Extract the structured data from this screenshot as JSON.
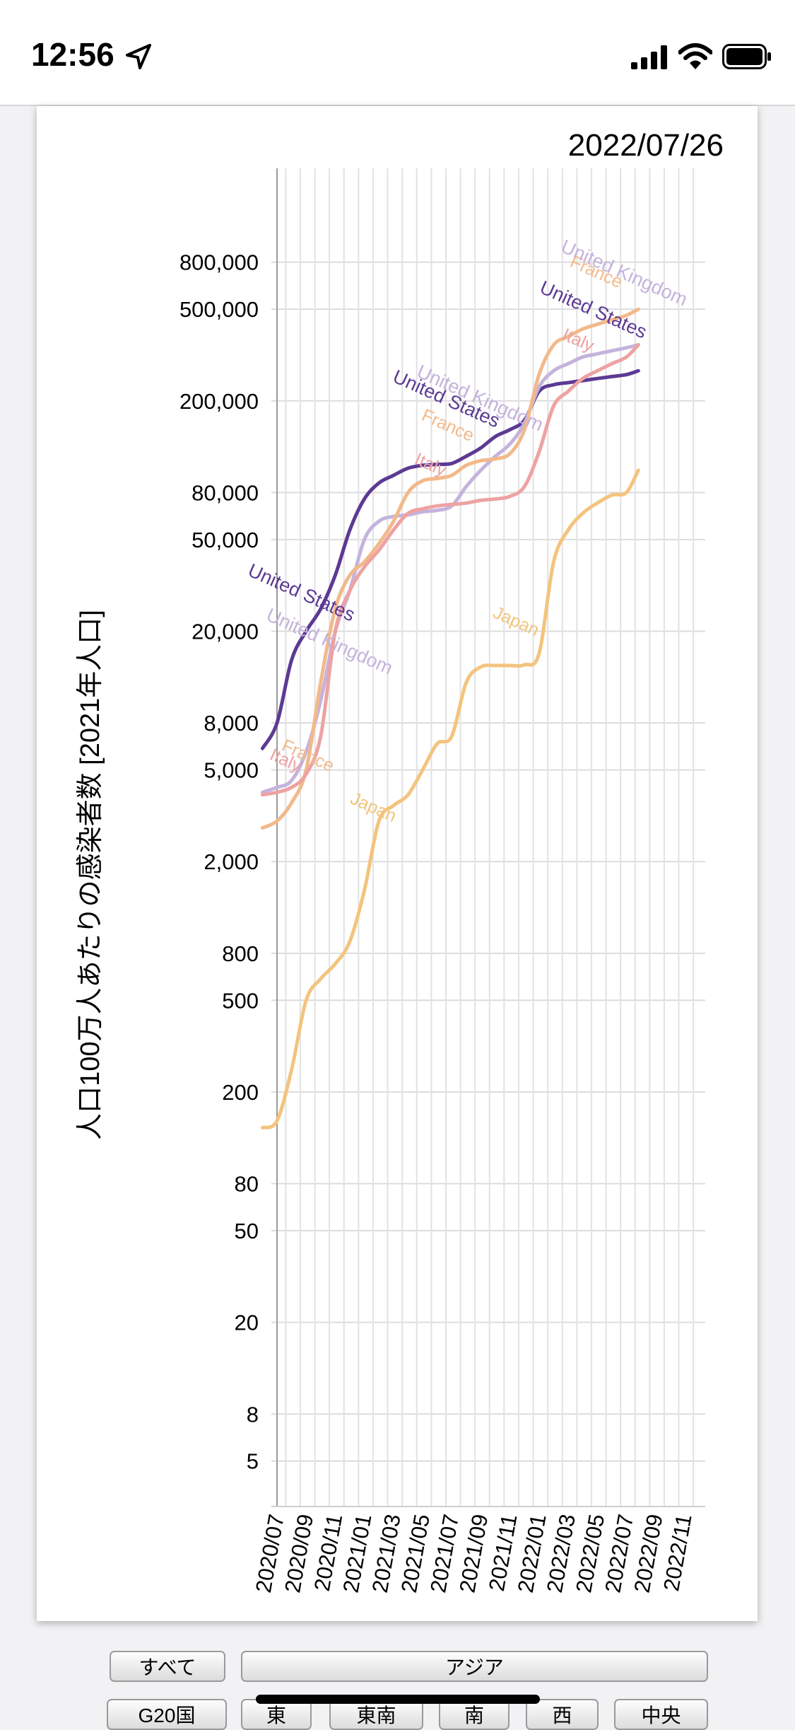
{
  "status_bar": {
    "time": "12:56"
  },
  "chart_date": "2022/07/26",
  "chart_data": {
    "type": "line",
    "title": "",
    "ylabel": "人口100万人あたりの感染者数 [2021年人口]",
    "xlabel": "",
    "y_scale": "log",
    "ylim": [
      3,
      1300000
    ],
    "y_ticks": [
      {
        "value": 800000,
        "label": "800,000"
      },
      {
        "value": 500000,
        "label": "500,000"
      },
      {
        "value": 200000,
        "label": "200,000"
      },
      {
        "value": 80000,
        "label": "80,000"
      },
      {
        "value": 50000,
        "label": "50,000"
      },
      {
        "value": 20000,
        "label": "20,000"
      },
      {
        "value": 8000,
        "label": "8,000"
      },
      {
        "value": 5000,
        "label": "5,000"
      },
      {
        "value": 2000,
        "label": "2,000"
      },
      {
        "value": 800,
        "label": "800"
      },
      {
        "value": 500,
        "label": "500"
      },
      {
        "value": 200,
        "label": "200"
      },
      {
        "value": 80,
        "label": "80"
      },
      {
        "value": 50,
        "label": "50"
      },
      {
        "value": 20,
        "label": "20"
      },
      {
        "value": 8,
        "label": "8"
      },
      {
        "value": 5,
        "label": "5"
      }
    ],
    "x_ticks": [
      "2020/07",
      "2020/09",
      "2020/11",
      "2021/01",
      "2021/03",
      "2021/05",
      "2021/07",
      "2021/09",
      "2021/11",
      "2022/01",
      "2022/03",
      "2022/05",
      "2022/07",
      "2022/09",
      "2022/11"
    ],
    "x_range_months": [
      "2020/07",
      "2022/12"
    ],
    "current_date_marker": "2020/07",
    "grid": true,
    "series": [
      {
        "name": "Japan",
        "color": "#f3c47e",
        "x": [
          "2020/06",
          "2020/07",
          "2020/08",
          "2020/09",
          "2020/10",
          "2020/11",
          "2020/12",
          "2021/01",
          "2021/02",
          "2021/03",
          "2021/04",
          "2021/05",
          "2021/06",
          "2021/07",
          "2021/08",
          "2021/09",
          "2021/10",
          "2021/11",
          "2021/12",
          "2022/01",
          "2022/02",
          "2022/03",
          "2022/04",
          "2022/05",
          "2022/06",
          "2022/07",
          "2022/07/26"
        ],
        "values": [
          140,
          150,
          250,
          500,
          620,
          720,
          900,
          1500,
          3000,
          3500,
          3900,
          5000,
          6500,
          7000,
          12000,
          14000,
          14200,
          14200,
          14300,
          16000,
          40000,
          55000,
          65000,
          72000,
          78000,
          80000,
          100000
        ]
      },
      {
        "name": "United States",
        "color": "#5c3a93",
        "x": [
          "2020/06",
          "2020/07",
          "2020/08",
          "2020/09",
          "2020/10",
          "2020/11",
          "2020/12",
          "2021/01",
          "2021/02",
          "2021/03",
          "2021/04",
          "2021/05",
          "2021/06",
          "2021/07",
          "2021/08",
          "2021/09",
          "2021/10",
          "2021/11",
          "2021/12",
          "2022/01",
          "2022/02",
          "2022/03",
          "2022/04",
          "2022/05",
          "2022/06",
          "2022/07",
          "2022/07/26"
        ],
        "values": [
          6200,
          8000,
          15000,
          20000,
          25000,
          35000,
          55000,
          75000,
          88000,
          95000,
          102000,
          105000,
          106000,
          107000,
          115000,
          125000,
          140000,
          150000,
          165000,
          220000,
          235000,
          240000,
          245000,
          250000,
          255000,
          260000,
          270000
        ]
      },
      {
        "name": "United Kingdom",
        "color": "#c4b3dc",
        "x": [
          "2020/06",
          "2020/07",
          "2020/08",
          "2020/09",
          "2020/10",
          "2020/11",
          "2020/12",
          "2021/01",
          "2021/02",
          "2021/03",
          "2021/04",
          "2021/05",
          "2021/06",
          "2021/07",
          "2021/08",
          "2021/09",
          "2021/10",
          "2021/11",
          "2021/12",
          "2022/01",
          "2022/02",
          "2022/03",
          "2022/04",
          "2022/05",
          "2022/06",
          "2022/07",
          "2022/07/26"
        ],
        "values": [
          4000,
          4200,
          4500,
          6000,
          10000,
          20000,
          30000,
          50000,
          60000,
          63000,
          64000,
          66000,
          67000,
          70000,
          85000,
          100000,
          115000,
          130000,
          160000,
          230000,
          270000,
          290000,
          310000,
          320000,
          330000,
          340000,
          350000
        ]
      },
      {
        "name": "France",
        "color": "#f2b98a",
        "x": [
          "2020/06",
          "2020/07",
          "2020/08",
          "2020/09",
          "2020/10",
          "2020/11",
          "2020/12",
          "2021/01",
          "2021/02",
          "2021/03",
          "2021/04",
          "2021/05",
          "2021/06",
          "2021/07",
          "2021/08",
          "2021/09",
          "2021/10",
          "2021/11",
          "2021/12",
          "2022/01",
          "2022/02",
          "2022/03",
          "2022/04",
          "2022/05",
          "2022/06",
          "2022/07",
          "2022/07/26"
        ],
        "values": [
          2800,
          3000,
          3600,
          5000,
          12000,
          25000,
          35000,
          40000,
          48000,
          60000,
          80000,
          90000,
          92000,
          95000,
          105000,
          110000,
          112000,
          118000,
          150000,
          260000,
          350000,
          380000,
          410000,
          430000,
          450000,
          470000,
          500000
        ]
      },
      {
        "name": "Italy",
        "color": "#eea2a2",
        "x": [
          "2020/06",
          "2020/07",
          "2020/08",
          "2020/09",
          "2020/10",
          "2020/11",
          "2020/12",
          "2021/01",
          "2021/02",
          "2021/03",
          "2021/04",
          "2021/05",
          "2021/06",
          "2021/07",
          "2021/08",
          "2021/09",
          "2021/10",
          "2021/11",
          "2021/12",
          "2022/01",
          "2022/02",
          "2022/03",
          "2022/04",
          "2022/05",
          "2022/06",
          "2022/07",
          "2022/07/26"
        ],
        "values": [
          3900,
          4000,
          4200,
          4800,
          7000,
          20000,
          30000,
          38000,
          45000,
          55000,
          65000,
          68000,
          70000,
          71000,
          72000,
          74000,
          75000,
          77000,
          85000,
          120000,
          190000,
          220000,
          250000,
          270000,
          290000,
          310000,
          350000
        ]
      }
    ],
    "annotations": [
      {
        "text": "United States",
        "color": "#5c3a93"
      },
      {
        "text": "United Kingdom",
        "color": "#c4b3dc"
      },
      {
        "text": "France",
        "color": "#f2b98a"
      },
      {
        "text": "Italy",
        "color": "#eea2a2"
      },
      {
        "text": "Japan",
        "color": "#f3c47e"
      },
      {
        "text": "Japan",
        "color": "#f3c47e"
      },
      {
        "text": "Italy",
        "color": "#eea2a2"
      },
      {
        "text": "France",
        "color": "#f2b98a"
      },
      {
        "text": "United Kingdom",
        "color": "#c4b3dc"
      },
      {
        "text": "United States",
        "color": "#5c3a93"
      },
      {
        "text": "Italy",
        "color": "#eea2a2"
      },
      {
        "text": "France",
        "color": "#f2b98a"
      },
      {
        "text": "United Kingdom",
        "color": "#c4b3dc"
      },
      {
        "text": "United States",
        "color": "#5c3a93"
      }
    ]
  },
  "filters": {
    "row1": [
      "すべて",
      "アジア"
    ],
    "row2": [
      "G20国",
      "東",
      "東南",
      "南",
      "西",
      "中央"
    ]
  }
}
